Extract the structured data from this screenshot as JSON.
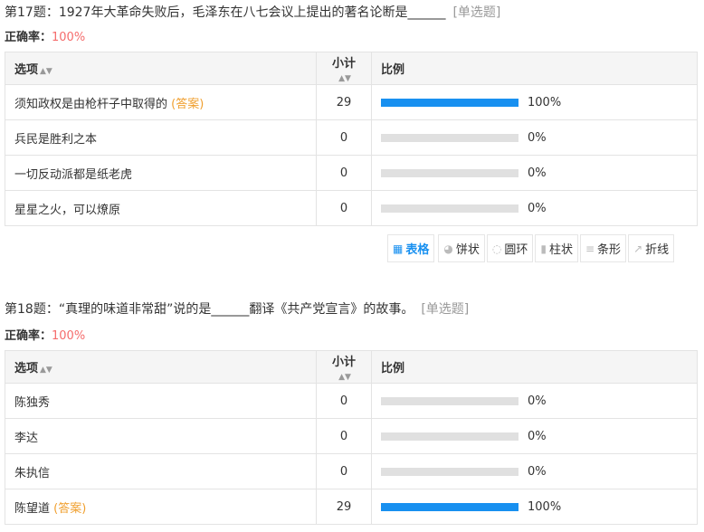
{
  "questions": [
    {
      "title": "第17题：1927年大革命失败后，毛泽东在八七会议上提出的著名论断是______",
      "type": "[单选题]",
      "accuracy_label": "正确率：",
      "accuracy": "100%",
      "headers": [
        "选项",
        "小计",
        "比例"
      ],
      "rows": [
        {
          "option": "须知政权是由枪杆子中取得的",
          "answer": "(答案)",
          "count": "29",
          "percent": "100%",
          "fill": 100
        },
        {
          "option": "兵民是胜利之本",
          "count": "0",
          "percent": "0%",
          "fill": 0
        },
        {
          "option": "一切反动派都是纸老虎",
          "count": "0",
          "percent": "0%",
          "fill": 0
        },
        {
          "option": "星星之火，可以燎原",
          "count": "0",
          "percent": "0%",
          "fill": 0
        }
      ]
    },
    {
      "title": "第18题：“真理的味道非常甜”说的是______翻译《共产党宣言》的故事。",
      "type": "[单选题]",
      "accuracy_label": "正确率：",
      "accuracy": "100%",
      "headers": [
        "选项",
        "小计",
        "比例"
      ],
      "rows": [
        {
          "option": "陈独秀",
          "count": "0",
          "percent": "0%",
          "fill": 0
        },
        {
          "option": "李达",
          "count": "0",
          "percent": "0%",
          "fill": 0
        },
        {
          "option": "朱执信",
          "count": "0",
          "percent": "0%",
          "fill": 0
        },
        {
          "option": "陈望道",
          "answer": "(答案)",
          "count": "29",
          "percent": "100%",
          "fill": 100
        }
      ]
    }
  ],
  "toolbar": [
    {
      "label": "表格",
      "icon": "table-icon",
      "glyph": "▦",
      "active": true
    },
    {
      "label": "饼状",
      "icon": "pie-chart-icon",
      "glyph": "◕"
    },
    {
      "label": "圆环",
      "icon": "donut-chart-icon",
      "glyph": "◌"
    },
    {
      "label": "柱状",
      "icon": "bar-chart-icon",
      "glyph": "▮"
    },
    {
      "label": "条形",
      "icon": "horizontal-bar-icon",
      "glyph": "≡"
    },
    {
      "label": "折线",
      "icon": "line-chart-icon",
      "glyph": "↗"
    }
  ],
  "colors": {
    "accent": "#1890f0",
    "accuracy": "#f56c6c",
    "answer": "#f0a030"
  }
}
